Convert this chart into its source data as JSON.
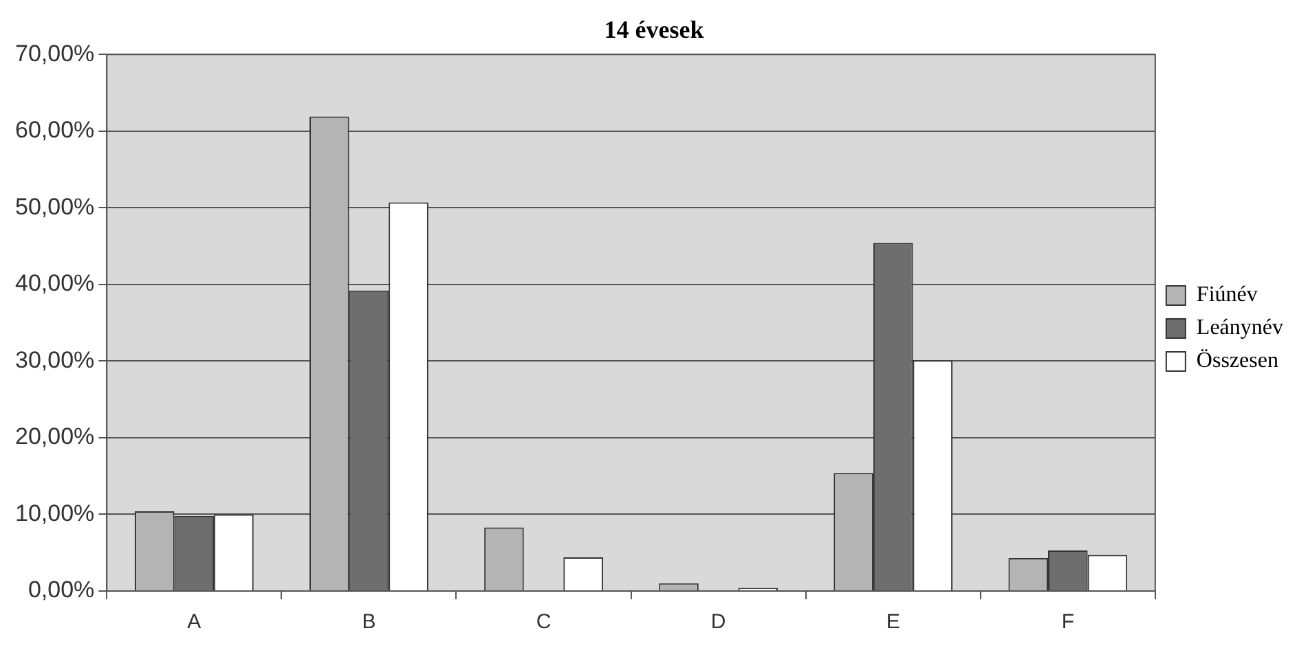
{
  "chart_data": {
    "type": "bar",
    "title": "14 évesek",
    "categories": [
      "A",
      "B",
      "C",
      "D",
      "E",
      "F"
    ],
    "series": [
      {
        "name": "Fiúnév",
        "color": "#b4b4b4",
        "values": [
          10.4,
          61.9,
          8.3,
          1.0,
          15.4,
          4.3
        ]
      },
      {
        "name": "Leánynév",
        "color": "#6e6e6e",
        "values": [
          9.8,
          39.2,
          0,
          0,
          45.4,
          5.3
        ]
      },
      {
        "name": "Összesen",
        "color": "#ffffff",
        "values": [
          10.0,
          50.7,
          4.4,
          0.4,
          30.1,
          4.7
        ]
      }
    ],
    "ylim": [
      0,
      70
    ],
    "yticks": [
      {
        "value": 0,
        "label": "0,00%"
      },
      {
        "value": 10,
        "label": "10,00%"
      },
      {
        "value": 20,
        "label": "20,00%"
      },
      {
        "value": 30,
        "label": "30,00%"
      },
      {
        "value": 40,
        "label": "40,00%"
      },
      {
        "value": 50,
        "label": "50,00%"
      },
      {
        "value": 60,
        "label": "60,00%"
      },
      {
        "value": 70,
        "label": "70,00%"
      }
    ],
    "grid": "y",
    "legend": "right"
  }
}
